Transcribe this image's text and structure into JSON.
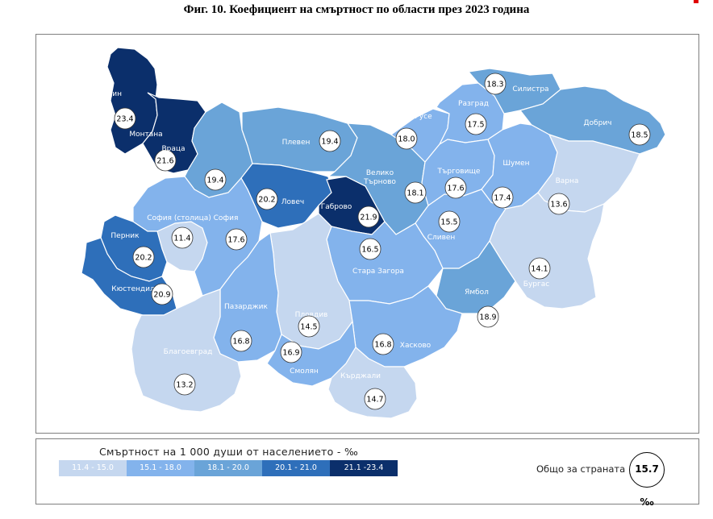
{
  "title": "Фиг. 10. Коефициент на смъртност по области през 2023 година",
  "colors": {
    "c1": "#c5d7ef",
    "c2": "#83b3ec",
    "c3": "#6aa4d8",
    "c4": "#2e6fba",
    "c5": "#0b2f6b",
    "border": "#ffffff"
  },
  "regions": [
    {
      "name": "Видин",
      "value": "23.4",
      "class": "c5"
    },
    {
      "name": "Монтана",
      "value": "21.6",
      "class": "c5"
    },
    {
      "name": "Враца",
      "value": "19.4",
      "class": "c3"
    },
    {
      "name": "Плевен",
      "value": "19.4",
      "class": "c3"
    },
    {
      "name": "Ловеч",
      "value": "20.2",
      "class": "c4"
    },
    {
      "name": "Габрово",
      "value": "21.9",
      "class": "c5"
    },
    {
      "name": "Велико Търново",
      "value": "18.1",
      "class": "c3"
    },
    {
      "name": "Русе",
      "value": "18.0",
      "class": "c2"
    },
    {
      "name": "Разград",
      "value": "17.5",
      "class": "c2"
    },
    {
      "name": "Силистра",
      "value": "18.3",
      "class": "c3"
    },
    {
      "name": "Добрич",
      "value": "18.5",
      "class": "c3"
    },
    {
      "name": "Търговище",
      "value": "17.6",
      "class": "c2"
    },
    {
      "name": "Шумен",
      "value": "17.4",
      "class": "c2"
    },
    {
      "name": "Варна",
      "value": "13.6",
      "class": "c1"
    },
    {
      "name": "София (столица)",
      "value": "11.4",
      "class": "c1"
    },
    {
      "name": "София",
      "value": "17.6",
      "class": "c2"
    },
    {
      "name": "Перник",
      "value": "20.2",
      "class": "c4"
    },
    {
      "name": "Кюстендил",
      "value": "20.9",
      "class": "c4"
    },
    {
      "name": "Сливен",
      "value": "15.5",
      "class": "c2"
    },
    {
      "name": "Стара Загора",
      "value": "16.5",
      "class": "c2"
    },
    {
      "name": "Бургас",
      "value": "14.1",
      "class": "c1"
    },
    {
      "name": "Ямбол",
      "value": "18.9",
      "class": "c3"
    },
    {
      "name": "Пловдив",
      "value": "14.5",
      "class": "c1"
    },
    {
      "name": "Пазарджик",
      "value": "16.8",
      "class": "c2"
    },
    {
      "name": "Хасково",
      "value": "16.8",
      "class": "c2"
    },
    {
      "name": "Смолян",
      "value": "16.9",
      "class": "c2"
    },
    {
      "name": "Благоевград",
      "value": "13.2",
      "class": "c1"
    },
    {
      "name": "Кърджали",
      "value": "14.7",
      "class": "c1"
    }
  ],
  "legend": {
    "title": "Смъртност на 1 000 души от населението - ‰",
    "bins": [
      "11.4 - 15.0",
      "15.1 - 18.0",
      "18.1 - 20.0",
      "20.1 - 21.0",
      "21.1 -23.4"
    ]
  },
  "total": {
    "label": "Общо за страната",
    "value": "15.7 ‰"
  }
}
